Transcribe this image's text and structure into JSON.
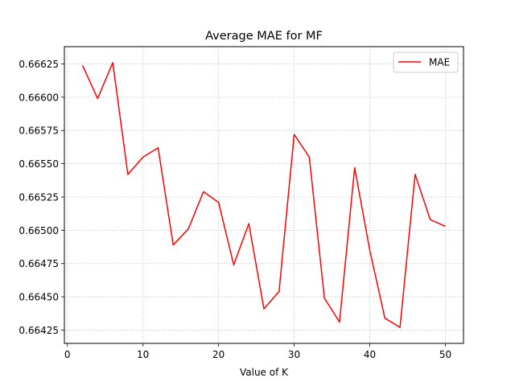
{
  "chart_data": {
    "type": "line",
    "title": "Average MAE for MF",
    "xlabel": "Value of K",
    "ylabel": "",
    "xlim": [
      -0.4,
      52.4
    ],
    "ylim": [
      0.66415,
      0.66638
    ],
    "xticks": [
      0,
      10,
      20,
      30,
      40,
      50
    ],
    "yticks": [
      0.66425,
      0.6645,
      0.66475,
      0.665,
      0.66525,
      0.6655,
      0.66575,
      0.666,
      0.66625
    ],
    "ytick_labels": [
      "0.66425",
      "0.66450",
      "0.66475",
      "0.66500",
      "0.66525",
      "0.66550",
      "0.66575",
      "0.66600",
      "0.66625"
    ],
    "grid": true,
    "legend_position": "top-right",
    "series": [
      {
        "name": "MAE",
        "color": "#ff0000",
        "x": [
          2,
          4,
          6,
          8,
          10,
          12,
          14,
          16,
          18,
          20,
          22,
          24,
          26,
          28,
          30,
          32,
          34,
          36,
          38,
          40,
          42,
          44,
          46,
          48,
          50
        ],
        "y": [
          0.66624,
          0.66599,
          0.66626,
          0.66542,
          0.66555,
          0.66562,
          0.66489,
          0.66501,
          0.66529,
          0.66521,
          0.66474,
          0.66505,
          0.66441,
          0.66454,
          0.66572,
          0.66555,
          0.66449,
          0.66431,
          0.66547,
          0.66485,
          0.66434,
          0.66427,
          0.66542,
          0.66508,
          0.66503
        ]
      }
    ]
  }
}
